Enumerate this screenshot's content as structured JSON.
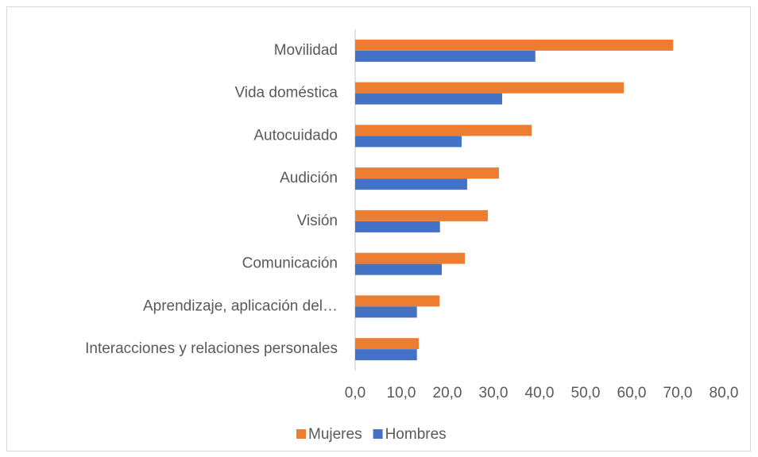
{
  "chart_data": {
    "type": "bar",
    "orientation": "horizontal",
    "categories": [
      "Movilidad",
      "Vida doméstica",
      "Autocuidado",
      "Audición",
      "Visión",
      "Comunicación",
      "Aprendizaje, aplicación del…",
      "Interacciones y relaciones personales"
    ],
    "series": [
      {
        "name": "Mujeres",
        "color": "#ed7d31",
        "values": [
          69.0,
          58.3,
          38.3,
          31.2,
          28.8,
          23.8,
          18.3,
          13.8
        ]
      },
      {
        "name": "Hombres",
        "color": "#4472c4",
        "values": [
          39.1,
          31.9,
          23.1,
          24.3,
          18.4,
          18.8,
          13.4,
          13.4
        ]
      }
    ],
    "xlim": [
      0,
      80
    ],
    "xticks": [
      {
        "value": 0,
        "label": "0,0"
      },
      {
        "value": 10,
        "label": "10,0"
      },
      {
        "value": 20,
        "label": "20,0"
      },
      {
        "value": 30,
        "label": "30,0"
      },
      {
        "value": 40,
        "label": "40,0"
      },
      {
        "value": 50,
        "label": "50,0"
      },
      {
        "value": 60,
        "label": "60,0"
      },
      {
        "value": 70,
        "label": "70,0"
      },
      {
        "value": 80,
        "label": "80,0"
      }
    ],
    "legend": "bottom"
  }
}
